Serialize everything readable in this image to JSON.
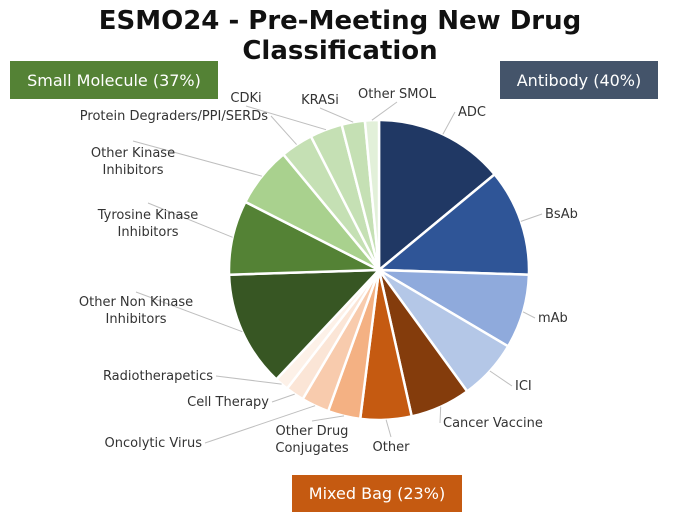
{
  "chart_data": {
    "type": "pie",
    "title": "ESMO24 - Pre-Meeting New Drug Classification",
    "groups": [
      {
        "name": "Small Molecule (37%)",
        "color": "#548235"
      },
      {
        "name": "Antibody (40%)",
        "color": "#44546A"
      },
      {
        "name": "Mixed Bag (23%)",
        "color": "#C55A11"
      }
    ],
    "slices": [
      {
        "label": "ADC",
        "value": 14.0,
        "color": "#203864"
      },
      {
        "label": "BsAb",
        "value": 11.5,
        "color": "#2F5597"
      },
      {
        "label": "mAb",
        "value": 8.0,
        "color": "#8FAADC"
      },
      {
        "label": "ICI",
        "value": 6.5,
        "color": "#B4C7E7"
      },
      {
        "label": "Cancer Vaccine",
        "value": 6.5,
        "color": "#843C0C"
      },
      {
        "label": "Other",
        "value": 5.5,
        "color": "#C55A11"
      },
      {
        "label": "Other Drug Conjugates",
        "value": 3.5,
        "color": "#F4B183"
      },
      {
        "label": "Oncolytic Virus",
        "value": 3.0,
        "color": "#F8CBAD"
      },
      {
        "label": "Cell Therapy",
        "value": 2.0,
        "color": "#FBE5D6"
      },
      {
        "label": "Radiotherapetics",
        "value": 1.5,
        "color": "#FDF1E8"
      },
      {
        "label": "Other Non Kinase Inhibitors",
        "value": 12.5,
        "color": "#375623"
      },
      {
        "label": "Tyrosine Kinase Inhibitors",
        "value": 8.0,
        "color": "#548235"
      },
      {
        "label": "Other Kinase Inhibitors",
        "value": 6.5,
        "color": "#A9D18E"
      },
      {
        "label": "Protein Degraders/PPI/SERDs",
        "value": 3.5,
        "color": "#C5E0B4"
      },
      {
        "label": "CDKi",
        "value": 3.5,
        "color": "#C5E0B4"
      },
      {
        "label": "KRASi",
        "value": 2.5,
        "color": "#C5E0B4"
      },
      {
        "label": "Other SMOL",
        "value": 1.5,
        "color": "#E2F0D9"
      }
    ]
  }
}
